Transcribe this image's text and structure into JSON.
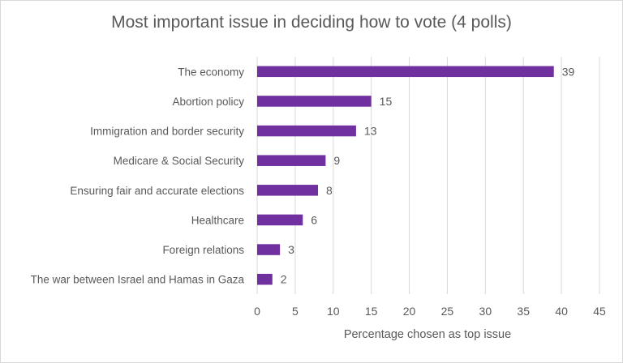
{
  "chart_data": {
    "type": "bar",
    "orientation": "horizontal",
    "title": "Most important issue in deciding how to vote (4 polls)",
    "xlabel": "Percentage chosen as top issue",
    "ylabel": "",
    "categories": [
      "The economy",
      "Abortion policy",
      "Immigration and border security",
      "Medicare & Social Security",
      "Ensuring fair and accurate elections",
      "Healthcare",
      "Foreign relations",
      "The war between Israel and Hamas in Gaza"
    ],
    "values": [
      39,
      15,
      13,
      9,
      8,
      6,
      3,
      2
    ],
    "xlim": [
      0,
      45
    ],
    "xticks": [
      0,
      5,
      10,
      15,
      20,
      25,
      30,
      35,
      40,
      45
    ],
    "grid": "vertical",
    "legend": "none",
    "bar_color": "#7030a0"
  }
}
